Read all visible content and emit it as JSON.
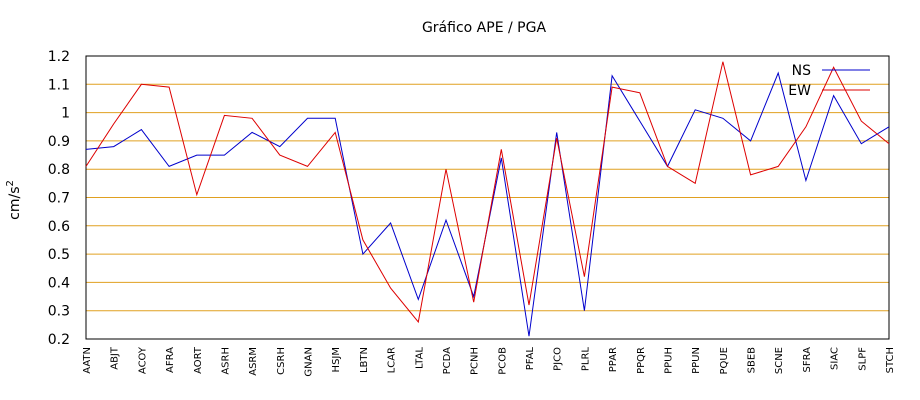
{
  "chart_data": {
    "type": "line",
    "title": "Gráfico  APE / PGA",
    "ylabel": "cm/s",
    "ylabel_superscript": "2",
    "ylim": [
      0.2,
      1.2
    ],
    "yticks": [
      "0.2",
      "0.3",
      "0.4",
      "0.5",
      "0.6",
      "0.7",
      "0.8",
      "0.9",
      "1",
      "1.1",
      "1.2"
    ],
    "grid": true,
    "legend_position": "top-right",
    "categories": [
      "AATN",
      "ABJT",
      "ACOY",
      "AFRA",
      "AORT",
      "ASRH",
      "ASRM",
      "CSRH",
      "GNAN",
      "HSJM",
      "LBTN",
      "LCAR",
      "LTAL",
      "PCDA",
      "PCNH",
      "PCOB",
      "PFAL",
      "PJCO",
      "PLRL",
      "PPAR",
      "PPQR",
      "PPUH",
      "PPUN",
      "PQUE",
      "SBEB",
      "SCNE",
      "SFRA",
      "SIAC",
      "SLPF",
      "STCH"
    ],
    "series": [
      {
        "name": "NS",
        "color": "#0000cc",
        "values": [
          0.87,
          0.88,
          0.94,
          0.81,
          0.85,
          0.85,
          0.93,
          0.88,
          0.98,
          0.98,
          0.5,
          0.61,
          0.34,
          0.62,
          0.35,
          0.84,
          0.21,
          0.93,
          0.3,
          1.13,
          0.97,
          0.81,
          1.01,
          0.98,
          0.9,
          1.14,
          0.76,
          1.06,
          0.89,
          0.95
        ]
      },
      {
        "name": "EW",
        "color": "#dd0000",
        "values": [
          0.81,
          0.96,
          1.1,
          1.09,
          0.71,
          0.99,
          0.98,
          0.85,
          0.81,
          0.93,
          0.55,
          0.38,
          0.26,
          0.8,
          0.33,
          0.87,
          0.32,
          0.91,
          0.42,
          1.09,
          1.07,
          0.81,
          0.75,
          1.18,
          0.78,
          0.81,
          0.95,
          1.16,
          0.97,
          0.89
        ]
      }
    ],
    "grid_color": "#e0a020"
  }
}
